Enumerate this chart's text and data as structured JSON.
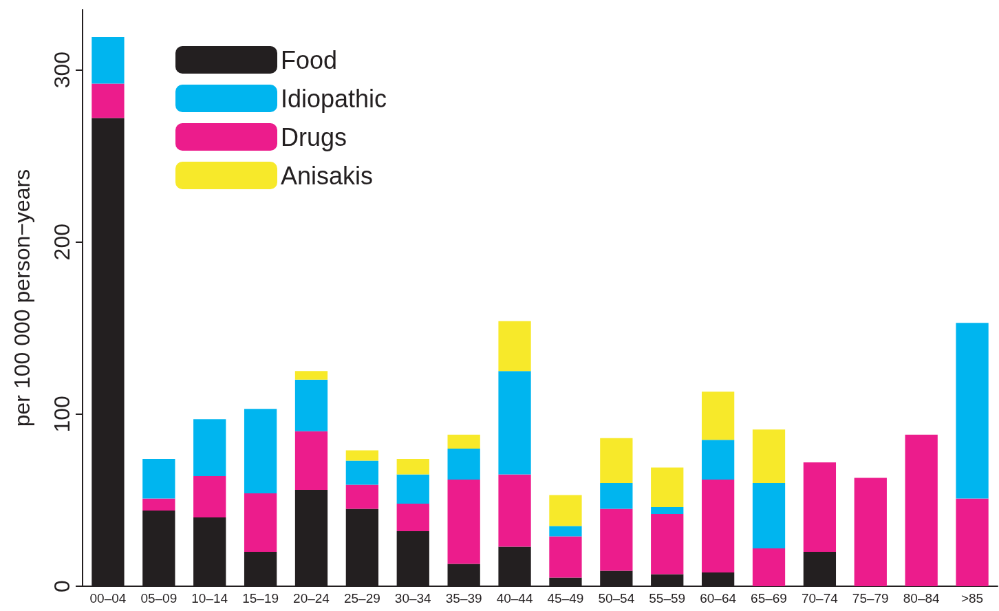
{
  "chart_data": {
    "type": "bar",
    "stacked": true,
    "ylabel": "per 100 000 person−years",
    "categories": [
      "00–04",
      "05–09",
      "10–14",
      "15–19",
      "20–24",
      "25–29",
      "30–34",
      "35–39",
      "40–44",
      "45–49",
      "50–54",
      "55–59",
      "60–64",
      "65–69",
      "70–74",
      "75–79",
      "80–84",
      ">85"
    ],
    "series": [
      {
        "name": "Food",
        "color": "#231f20",
        "values": [
          272,
          44,
          40,
          20,
          56,
          45,
          32,
          13,
          23,
          5,
          9,
          7,
          8,
          0,
          20,
          0,
          0,
          0
        ]
      },
      {
        "name": "Drugs",
        "color": "#ec1c8c",
        "values": [
          20,
          7,
          24,
          34,
          34,
          14,
          16,
          49,
          42,
          24,
          36,
          35,
          54,
          22,
          52,
          63,
          88,
          51
        ]
      },
      {
        "name": "Idiopathic",
        "color": "#00b5ef",
        "values": [
          27,
          23,
          33,
          49,
          30,
          14,
          17,
          18,
          60,
          6,
          15,
          4,
          23,
          38,
          0,
          0,
          0,
          102
        ]
      },
      {
        "name": "Anisakis",
        "color": "#f7e92a",
        "values": [
          0,
          0,
          0,
          0,
          5,
          6,
          9,
          8,
          29,
          18,
          26,
          23,
          28,
          31,
          0,
          0,
          0,
          0
        ]
      }
    ],
    "ylim": [
      0,
      335
    ],
    "yticks": [
      0,
      100,
      200,
      300
    ],
    "grid": false,
    "legend": "top left"
  }
}
